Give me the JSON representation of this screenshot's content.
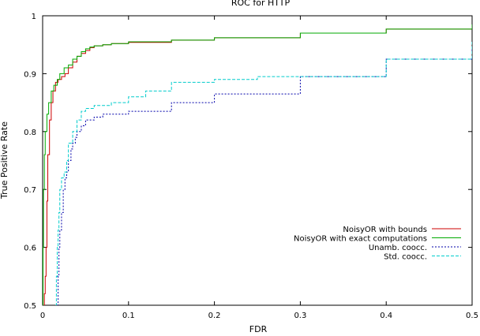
{
  "chart_data": {
    "type": "line",
    "title": "ROC for HTTP",
    "xlabel": "FDR",
    "ylabel": "True Positive Rate",
    "xlim": [
      0,
      0.5
    ],
    "ylim": [
      0.5,
      1
    ],
    "x_ticks": [
      {
        "value": 0,
        "label": "0"
      },
      {
        "value": 0.1,
        "label": "0.1"
      },
      {
        "value": 0.2,
        "label": "0.2"
      },
      {
        "value": 0.3,
        "label": "0.3"
      },
      {
        "value": 0.4,
        "label": "0.4"
      },
      {
        "value": 0.5,
        "label": "0.5"
      }
    ],
    "y_ticks": [
      {
        "value": 0.5,
        "label": "0.5"
      },
      {
        "value": 0.6,
        "label": "0.6"
      },
      {
        "value": 0.7,
        "label": "0.7"
      },
      {
        "value": 0.8,
        "label": "0.8"
      },
      {
        "value": 0.9,
        "label": "0.9"
      },
      {
        "value": 1,
        "label": "1"
      }
    ],
    "grid": false,
    "legend_position": "bottom-right",
    "series": [
      {
        "name": "NoisyOR with bounds",
        "color": "#cc0000",
        "dash": "solid",
        "x": [
          0.0,
          0.001,
          0.002,
          0.003,
          0.004,
          0.005,
          0.006,
          0.008,
          0.01,
          0.012,
          0.015,
          0.018,
          0.022,
          0.026,
          0.03,
          0.035,
          0.04,
          0.045,
          0.05,
          0.055,
          0.06,
          0.07,
          0.08,
          0.1,
          0.15,
          0.2,
          0.3,
          0.4,
          0.5
        ],
        "y": [
          0.5,
          0.5,
          0.52,
          0.55,
          0.6,
          0.68,
          0.76,
          0.82,
          0.85,
          0.87,
          0.885,
          0.89,
          0.895,
          0.9,
          0.91,
          0.92,
          0.93,
          0.935,
          0.94,
          0.945,
          0.948,
          0.95,
          0.952,
          0.954,
          0.958,
          0.962,
          0.97,
          0.977,
          0.985
        ]
      },
      {
        "name": "NoisyOR with exact computations",
        "color": "#00aa00",
        "dash": "solid",
        "x": [
          0.0,
          0.0005,
          0.001,
          0.002,
          0.003,
          0.005,
          0.007,
          0.01,
          0.013,
          0.017,
          0.02,
          0.025,
          0.03,
          0.035,
          0.04,
          0.045,
          0.05,
          0.055,
          0.06,
          0.07,
          0.08,
          0.1,
          0.15,
          0.2,
          0.3,
          0.4,
          0.5
        ],
        "y": [
          0.5,
          0.6,
          0.7,
          0.76,
          0.8,
          0.83,
          0.85,
          0.87,
          0.88,
          0.89,
          0.9,
          0.91,
          0.915,
          0.925,
          0.93,
          0.938,
          0.943,
          0.946,
          0.948,
          0.95,
          0.952,
          0.955,
          0.958,
          0.962,
          0.97,
          0.977,
          0.985
        ]
      },
      {
        "name": "Unamb. coocc.",
        "color": "#0000aa",
        "dash": "dotted",
        "x": [
          0.017,
          0.018,
          0.019,
          0.02,
          0.022,
          0.024,
          0.026,
          0.028,
          0.03,
          0.033,
          0.035,
          0.038,
          0.04,
          0.045,
          0.05,
          0.06,
          0.07,
          0.1,
          0.15,
          0.2,
          0.3,
          0.4,
          0.5
        ],
        "y": [
          0.5,
          0.55,
          0.6,
          0.63,
          0.66,
          0.7,
          0.72,
          0.73,
          0.75,
          0.77,
          0.78,
          0.79,
          0.8,
          0.81,
          0.82,
          0.825,
          0.83,
          0.835,
          0.85,
          0.865,
          0.895,
          0.925,
          0.955
        ]
      },
      {
        "name": "Std. coocc.",
        "color": "#00cccc",
        "dash": "dashed",
        "x": [
          0.015,
          0.016,
          0.017,
          0.018,
          0.019,
          0.02,
          0.022,
          0.025,
          0.028,
          0.03,
          0.035,
          0.04,
          0.045,
          0.05,
          0.06,
          0.08,
          0.1,
          0.12,
          0.15,
          0.2,
          0.25,
          0.3,
          0.4,
          0.5
        ],
        "y": [
          0.5,
          0.55,
          0.6,
          0.63,
          0.66,
          0.7,
          0.72,
          0.73,
          0.75,
          0.78,
          0.8,
          0.82,
          0.835,
          0.84,
          0.845,
          0.85,
          0.86,
          0.87,
          0.885,
          0.89,
          0.895,
          0.895,
          0.925,
          0.955
        ]
      }
    ]
  }
}
